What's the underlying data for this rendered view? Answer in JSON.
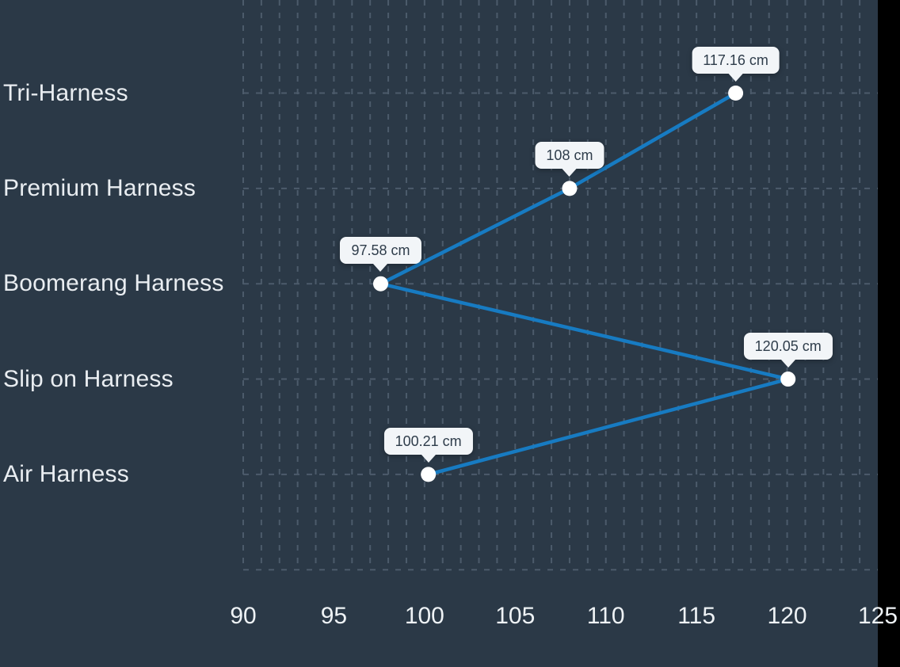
{
  "chart_data": {
    "type": "line",
    "orientation": "horizontal-category",
    "title": "",
    "legend": "none",
    "categories": [
      "Tri-Harness",
      "Premium Harness",
      "Boomerang Harness",
      "Slip on Harness",
      "Air Harness"
    ],
    "series": [
      {
        "name": "length",
        "values": [
          117.16,
          108,
          97.58,
          120.05,
          100.21
        ]
      }
    ],
    "point_labels": [
      "117.16 cm",
      "108 cm",
      "97.58 cm",
      "120.05 cm",
      "100.21 cm"
    ],
    "value_unit": "cm",
    "x_axis": {
      "min": 90,
      "max": 125,
      "major_ticks": [
        90,
        95,
        100,
        105,
        110,
        115,
        120,
        125
      ],
      "minor_step": 1
    },
    "grid": {
      "style": "dashed",
      "vertical": "every 1 unit",
      "horizontal": "one line per category plus bottom edge"
    },
    "colors": {
      "page_beyond_chart": "#000000",
      "chart_background": "#2b3947",
      "grid_line": "#4c5b6b",
      "series_line": "#177bc2",
      "point_fill": "#ffffff",
      "tooltip_background": "#f2f5f8",
      "tooltip_text": "#2f3d4b",
      "category_label_text": "#e9edf1",
      "axis_label_text": "#eef2f5"
    }
  }
}
